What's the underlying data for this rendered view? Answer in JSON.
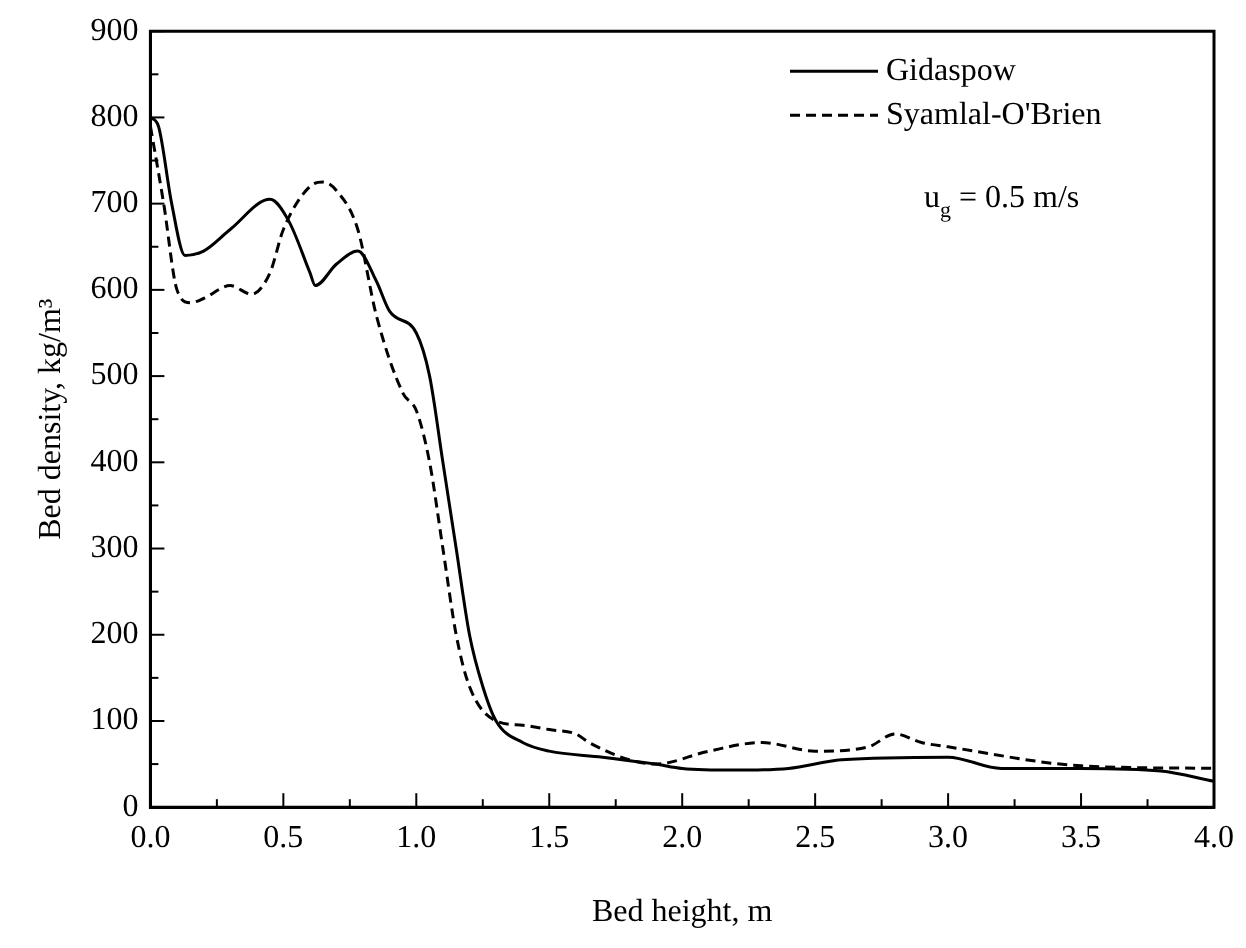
{
  "chart_data": {
    "type": "line",
    "xlabel": "Bed height, m",
    "ylabel": "Bed density, kg/m³",
    "xlim": [
      0,
      4
    ],
    "xticks": [
      {
        "value": 0,
        "label": "0.0"
      },
      0.5,
      {
        "value": 1,
        "label": "1.0"
      },
      1.5,
      {
        "value": 2,
        "label": "2.0"
      },
      2.5,
      {
        "value": 3,
        "label": "3.0"
      },
      3.5,
      {
        "value": 4,
        "label": "4.0"
      }
    ],
    "ylim": [
      0,
      900
    ],
    "yticks": [
      0,
      100,
      200,
      300,
      400,
      500,
      600,
      700,
      800,
      900
    ],
    "grid": false,
    "legend": "top right",
    "marker": "none",
    "annotations": [
      "u$_{g}$ = 0.5 m/s"
    ],
    "series": [
      {
        "name": "Gidaspow",
        "color": "#000000",
        "line_style": "solid",
        "x": [
          0,
          0.03,
          0.08,
          0.13,
          0.2,
          0.3,
          0.45,
          0.52,
          0.6,
          0.62,
          0.7,
          0.78,
          0.85,
          0.9,
          1.0,
          1.05,
          1.1,
          1.15,
          1.2,
          1.25,
          1.3,
          1.4,
          1.5,
          1.7,
          1.9,
          2.0,
          2.2,
          2.4,
          2.6,
          3.0,
          3.2,
          3.5,
          3.8,
          4.0
        ],
        "values": [
          800,
          790,
          700,
          640,
          645,
          670,
          705,
          680,
          620,
          605,
          630,
          645,
          610,
          575,
          550,
          500,
          400,
          300,
          200,
          140,
          100,
          75,
          65,
          58,
          50,
          45,
          43,
          45,
          55,
          58,
          45,
          45,
          42,
          30
        ]
      },
      {
        "name": "Syamlal-O'Brien",
        "color": "#000000",
        "line_style": "dashed",
        "x": [
          0,
          0.05,
          0.1,
          0.15,
          0.2,
          0.3,
          0.38,
          0.45,
          0.5,
          0.6,
          0.65,
          0.7,
          0.78,
          0.85,
          0.95,
          1.0,
          1.05,
          1.1,
          1.15,
          1.2,
          1.3,
          1.4,
          1.5,
          1.6,
          1.65,
          1.8,
          1.9,
          2.1,
          2.3,
          2.5,
          2.7,
          2.8,
          2.9,
          3.0,
          3.5,
          4.0
        ],
        "values": [
          790,
          700,
          600,
          585,
          590,
          605,
          595,
          620,
          670,
          720,
          725,
          715,
          670,
          570,
          480,
          460,
          400,
          300,
          200,
          140,
          100,
          95,
          90,
          85,
          75,
          55,
          50,
          65,
          75,
          65,
          70,
          85,
          75,
          70,
          48,
          45
        ]
      }
    ]
  }
}
